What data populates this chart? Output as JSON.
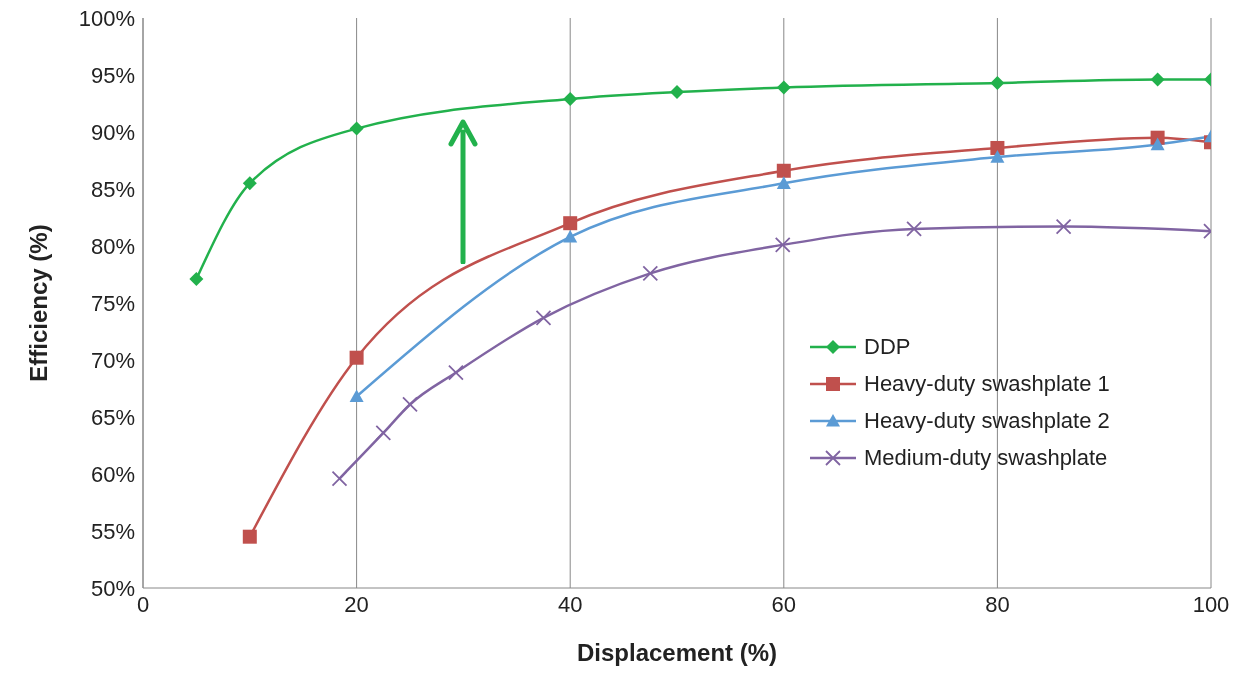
{
  "chart_data": {
    "type": "line",
    "xlabel": "Displacement (%)",
    "ylabel": "Efficiency (%)",
    "xlim": [
      0,
      100
    ],
    "xticks": [
      0,
      20,
      40,
      60,
      80,
      100
    ],
    "ylim": [
      50,
      100
    ],
    "yticks": [
      {
        "value": 50,
        "label": "50%"
      },
      {
        "value": 55,
        "label": "55%"
      },
      {
        "value": 60,
        "label": "60%"
      },
      {
        "value": 65,
        "label": "65%"
      },
      {
        "value": 70,
        "label": "70%"
      },
      {
        "value": 75,
        "label": "75%"
      },
      {
        "value": 80,
        "label": "80%"
      },
      {
        "value": 85,
        "label": "85%"
      },
      {
        "value": 90,
        "label": "90%"
      },
      {
        "value": 95,
        "label": "95%"
      },
      {
        "value": 100,
        "label": "100%"
      }
    ],
    "grid": "x",
    "legend": "right",
    "line_style": "solid",
    "series": [
      {
        "name": "DDP",
        "color": "#22b14c",
        "marker": "diamond",
        "x": [
          5,
          10,
          20,
          40,
          50,
          60,
          80,
          95,
          100
        ],
        "values": [
          77.1,
          85.5,
          90.3,
          92.9,
          93.5,
          93.9,
          94.3,
          94.6,
          94.6
        ]
      },
      {
        "name": "Heavy-duty swashplate 1",
        "color": "#c0504d",
        "marker": "square",
        "x": [
          10,
          20,
          40,
          60,
          80,
          95,
          100
        ],
        "values": [
          54.5,
          70.2,
          82.0,
          86.6,
          88.6,
          89.5,
          89.1
        ]
      },
      {
        "name": "Heavy-duty swashplate 2",
        "color": "#5b9bd5",
        "marker": "triangle",
        "x": [
          20,
          40,
          60,
          80,
          95,
          100
        ],
        "values": [
          66.8,
          80.8,
          85.5,
          87.8,
          88.9,
          89.6
        ]
      },
      {
        "name": "Medium-duty swashplate",
        "color": "#8064a2",
        "marker": "cross",
        "x": [
          18.4,
          22.5,
          25,
          29.3,
          37.5,
          47.5,
          59.9,
          72.2,
          86.2,
          100
        ],
        "values": [
          59.6,
          63.6,
          66.1,
          68.9,
          73.7,
          77.6,
          80.1,
          81.5,
          81.7,
          81.3
        ]
      }
    ]
  }
}
